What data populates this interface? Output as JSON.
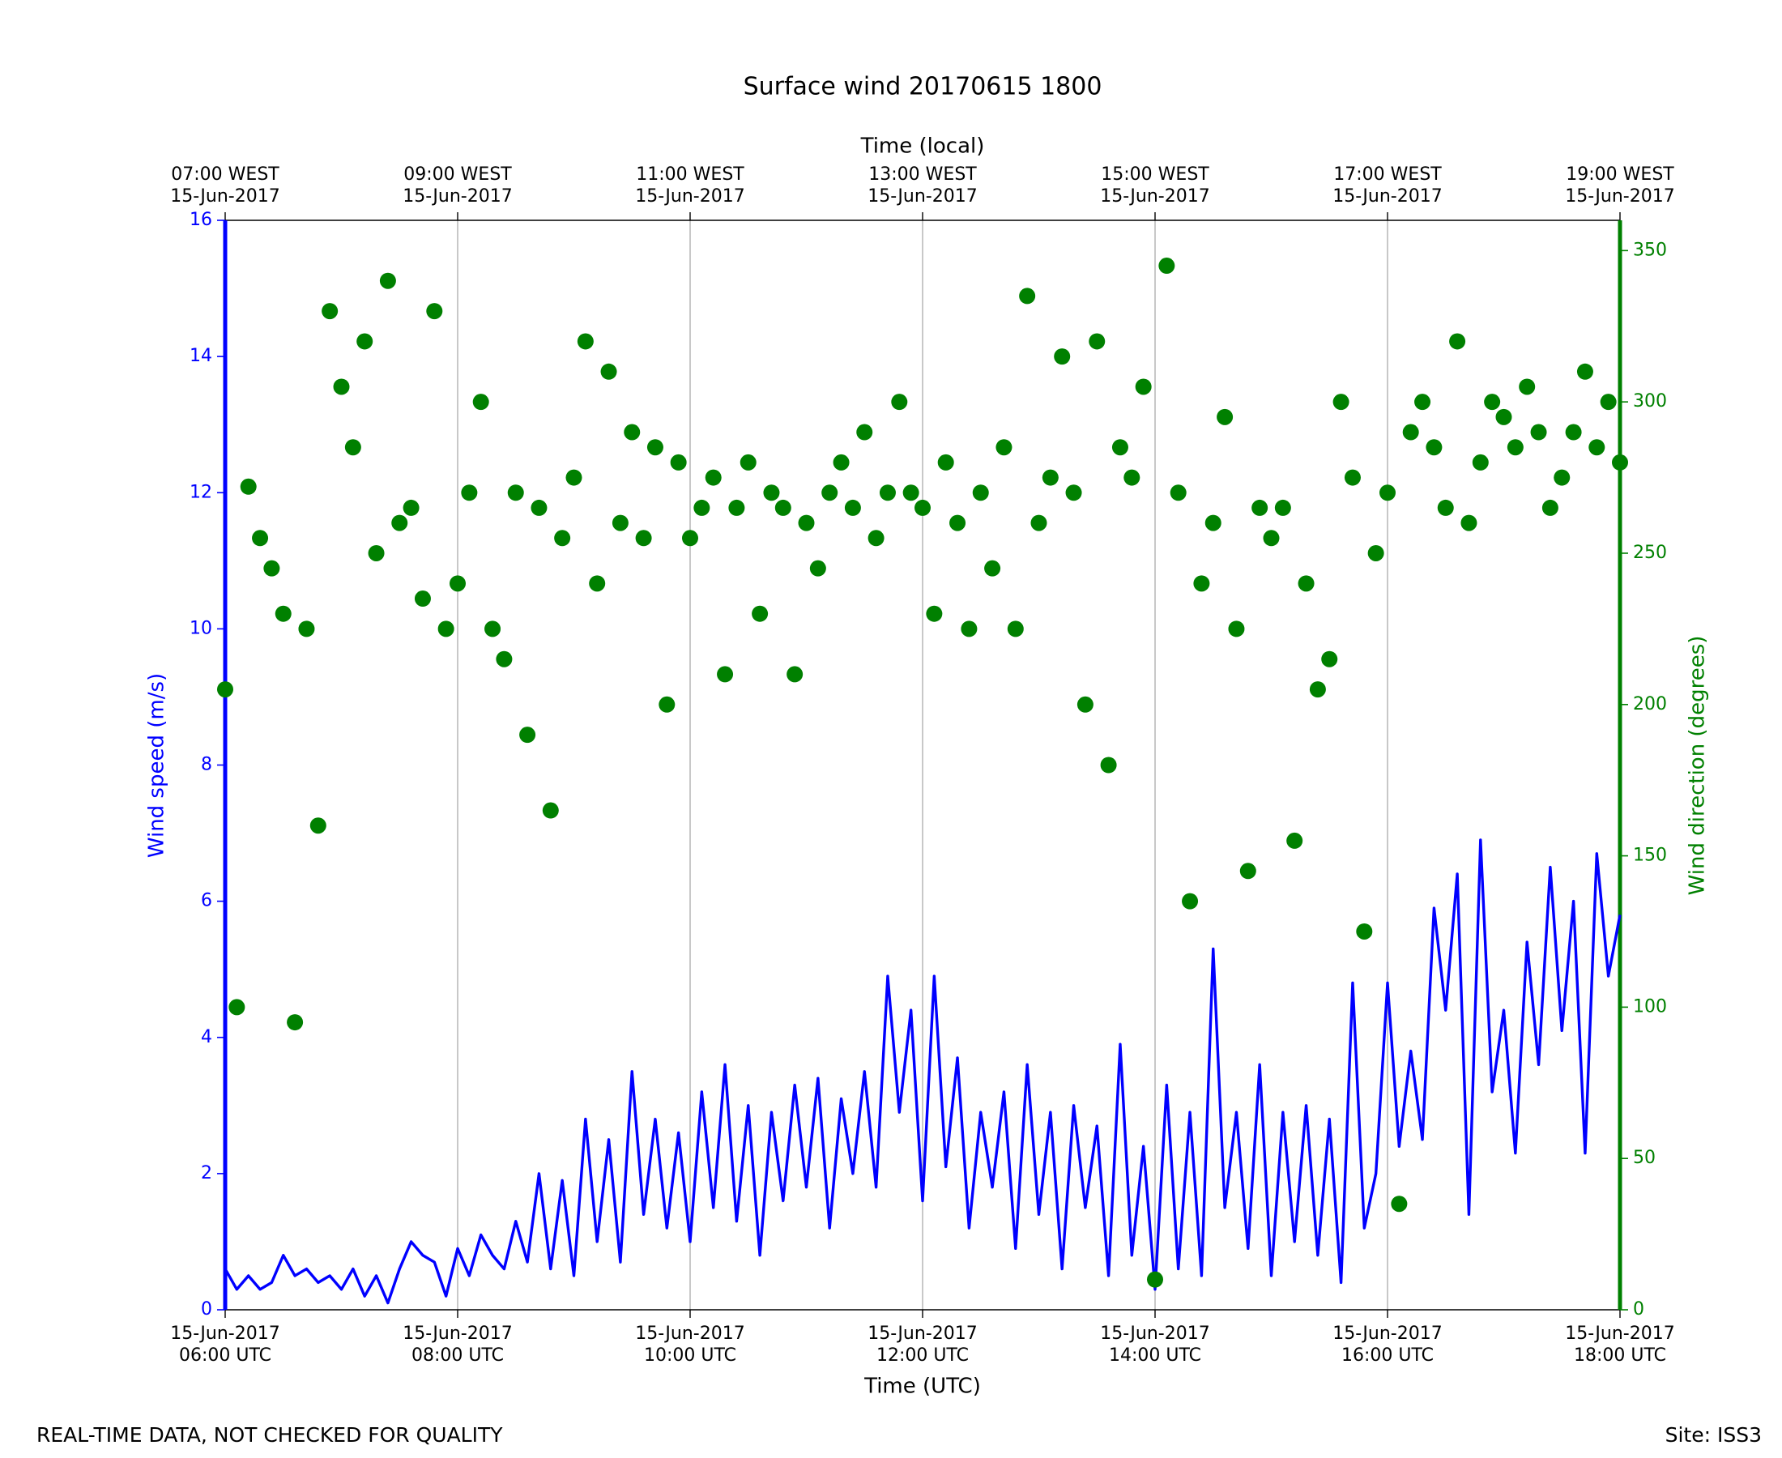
{
  "chart_data": {
    "type": "line",
    "title": "Surface wind 20170615 1800",
    "xlabel": "Time (UTC)",
    "x2label": "Time (local)",
    "ylabel": "Wind speed (m/s)",
    "y2label": "Wind direction (degrees)",
    "footer_left": "REAL-TIME DATA, NOT CHECKED FOR QUALITY",
    "footer_right": "Site: ISS3",
    "xlim": [
      6,
      18
    ],
    "xticks": [
      {
        "value": 6,
        "label": [
          "15-Jun-2017",
          "06:00 UTC"
        ]
      },
      {
        "value": 8,
        "label": [
          "15-Jun-2017",
          "08:00 UTC"
        ]
      },
      {
        "value": 10,
        "label": [
          "15-Jun-2017",
          "10:00 UTC"
        ]
      },
      {
        "value": 12,
        "label": [
          "15-Jun-2017",
          "12:00 UTC"
        ]
      },
      {
        "value": 14,
        "label": [
          "15-Jun-2017",
          "14:00 UTC"
        ]
      },
      {
        "value": 16,
        "label": [
          "15-Jun-2017",
          "16:00 UTC"
        ]
      },
      {
        "value": 18,
        "label": [
          "15-Jun-2017",
          "18:00 UTC"
        ]
      }
    ],
    "x2ticks": [
      {
        "value": 6,
        "label": [
          "07:00 WEST",
          "15-Jun-2017"
        ]
      },
      {
        "value": 8,
        "label": [
          "09:00 WEST",
          "15-Jun-2017"
        ]
      },
      {
        "value": 10,
        "label": [
          "11:00 WEST",
          "15-Jun-2017"
        ]
      },
      {
        "value": 12,
        "label": [
          "13:00 WEST",
          "15-Jun-2017"
        ]
      },
      {
        "value": 14,
        "label": [
          "15:00 WEST",
          "15-Jun-2017"
        ]
      },
      {
        "value": 16,
        "label": [
          "17:00 WEST",
          "15-Jun-2017"
        ]
      },
      {
        "value": 18,
        "label": [
          "19:00 WEST",
          "15-Jun-2017"
        ]
      }
    ],
    "ylim": [
      0,
      16
    ],
    "yticks": [
      0,
      2,
      4,
      6,
      8,
      10,
      12,
      14,
      16
    ],
    "y2lim": [
      0,
      360
    ],
    "y2ticks": [
      0,
      50,
      100,
      150,
      200,
      250,
      300,
      350
    ],
    "grid": "x",
    "x": [
      6.0,
      6.1,
      6.2,
      6.3,
      6.4,
      6.5,
      6.6,
      6.7,
      6.8,
      6.9,
      7.0,
      7.1,
      7.2,
      7.3,
      7.4,
      7.5,
      7.6,
      7.7,
      7.8,
      7.9,
      8.0,
      8.1,
      8.2,
      8.3,
      8.4,
      8.5,
      8.6,
      8.7,
      8.8,
      8.9,
      9.0,
      9.1,
      9.2,
      9.3,
      9.4,
      9.5,
      9.6,
      9.7,
      9.8,
      9.9,
      10.0,
      10.1,
      10.2,
      10.3,
      10.4,
      10.5,
      10.6,
      10.7,
      10.8,
      10.9,
      11.0,
      11.1,
      11.2,
      11.3,
      11.4,
      11.5,
      11.6,
      11.7,
      11.8,
      11.9,
      12.0,
      12.1,
      12.2,
      12.3,
      12.4,
      12.5,
      12.6,
      12.7,
      12.8,
      12.9,
      13.0,
      13.1,
      13.2,
      13.3,
      13.4,
      13.5,
      13.6,
      13.7,
      13.8,
      13.9,
      14.0,
      14.1,
      14.2,
      14.3,
      14.4,
      14.5,
      14.6,
      14.7,
      14.8,
      14.9,
      15.0,
      15.1,
      15.2,
      15.3,
      15.4,
      15.5,
      15.6,
      15.7,
      15.8,
      15.9,
      16.0,
      16.1,
      16.2,
      16.3,
      16.4,
      16.5,
      16.6,
      16.7,
      16.8,
      16.9,
      17.0,
      17.1,
      17.2,
      17.3,
      17.4,
      17.5,
      17.6,
      17.7,
      17.8,
      17.9,
      18.0
    ],
    "series": [
      {
        "type": "line",
        "color": "#0000ff",
        "axis": "y",
        "values": [
          0.6,
          0.3,
          0.5,
          0.3,
          0.4,
          0.8,
          0.5,
          0.6,
          0.4,
          0.5,
          0.3,
          0.6,
          0.2,
          0.5,
          0.1,
          0.6,
          1.0,
          0.8,
          0.7,
          0.2,
          0.9,
          0.5,
          1.1,
          0.8,
          0.6,
          1.3,
          0.7,
          2.0,
          0.6,
          1.9,
          0.5,
          2.8,
          1.0,
          2.5,
          0.7,
          3.5,
          1.4,
          2.8,
          1.2,
          2.6,
          1.0,
          3.2,
          1.5,
          3.6,
          1.3,
          3.0,
          0.8,
          2.9,
          1.6,
          3.3,
          1.8,
          3.4,
          1.2,
          3.1,
          2.0,
          3.5,
          1.8,
          4.9,
          2.9,
          4.4,
          1.6,
          4.9,
          2.1,
          3.7,
          1.2,
          2.9,
          1.8,
          3.2,
          0.9,
          3.6,
          1.4,
          2.9,
          0.6,
          3.0,
          1.5,
          2.7,
          0.5,
          3.9,
          0.8,
          2.4,
          0.3,
          3.3,
          0.6,
          2.9,
          0.5,
          5.3,
          1.5,
          2.9,
          0.9,
          3.6,
          0.5,
          2.9,
          1.0,
          3.0,
          0.8,
          2.8,
          0.4,
          4.8,
          1.2,
          2.0,
          4.8,
          2.4,
          3.8,
          2.5,
          5.9,
          4.4,
          6.4,
          1.4,
          6.9,
          3.2,
          4.4,
          2.3,
          5.4,
          3.6,
          6.5,
          4.1,
          6.0,
          2.3,
          6.7,
          4.9,
          5.8
        ]
      },
      {
        "type": "scatter",
        "color": "#008000",
        "axis": "y2",
        "values": [
          205,
          100,
          272,
          255,
          245,
          230,
          95,
          225,
          160,
          330,
          305,
          285,
          320,
          250,
          340,
          260,
          265,
          235,
          330,
          225,
          240,
          270,
          300,
          225,
          215,
          270,
          190,
          265,
          165,
          255,
          275,
          320,
          240,
          310,
          260,
          290,
          255,
          285,
          200,
          280,
          255,
          265,
          275,
          210,
          265,
          280,
          230,
          270,
          265,
          210,
          260,
          245,
          270,
          280,
          265,
          290,
          255,
          270,
          300,
          270,
          265,
          230,
          280,
          260,
          225,
          270,
          245,
          285,
          225,
          335,
          260,
          275,
          315,
          270,
          200,
          320,
          180,
          285,
          275,
          305,
          10,
          345,
          270,
          135,
          240,
          260,
          295,
          225,
          145,
          265,
          255,
          265,
          155,
          240,
          205,
          215,
          300,
          275,
          125,
          250,
          270,
          35,
          290,
          300,
          285,
          265,
          320,
          260,
          280,
          300,
          295,
          285,
          305,
          290,
          265,
          275,
          290,
          310,
          285,
          300,
          280
        ]
      }
    ]
  }
}
